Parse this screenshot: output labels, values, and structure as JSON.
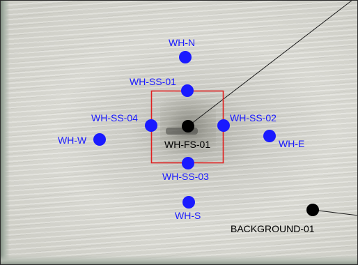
{
  "map": {
    "colors": {
      "sample_blue": "#1a1aff",
      "sample_black": "#000000",
      "boundary_red": "#e02020",
      "leader_line": "#1a1a1a"
    },
    "samples": [
      {
        "id": "wh-n",
        "label": "WH-N",
        "color": "#1a1aff"
      },
      {
        "id": "wh-ss-01",
        "label": "WH-SS-01",
        "color": "#1a1aff"
      },
      {
        "id": "wh-ss-04",
        "label": "WH-SS-04",
        "color": "#1a1aff"
      },
      {
        "id": "wh-ss-02",
        "label": "WH-SS-02",
        "color": "#1a1aff"
      },
      {
        "id": "wh-w",
        "label": "WH-W",
        "color": "#1a1aff"
      },
      {
        "id": "wh-e",
        "label": "WH-E",
        "color": "#1a1aff"
      },
      {
        "id": "wh-fs-01",
        "label": "WH-FS-01",
        "color": "#000000"
      },
      {
        "id": "wh-ss-03",
        "label": "WH-SS-03",
        "color": "#1a1aff"
      },
      {
        "id": "wh-s",
        "label": "WH-S",
        "color": "#1a1aff"
      },
      {
        "id": "background-01",
        "label": "BACKGROUND-01",
        "color": "#000000"
      }
    ]
  }
}
